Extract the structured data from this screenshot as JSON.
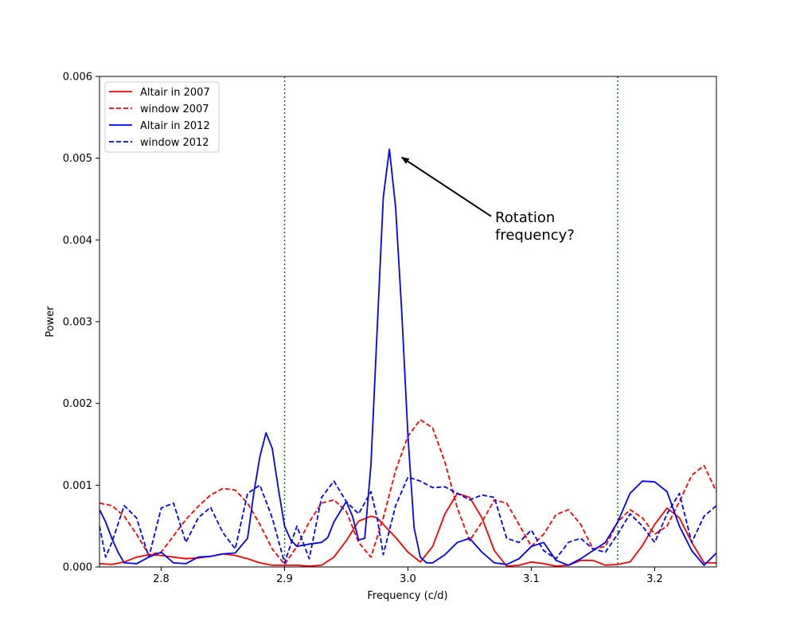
{
  "chart_data": {
    "type": "line",
    "xlabel": "Frequency (c/d)",
    "ylabel": "Power",
    "xlim": [
      2.75,
      3.25
    ],
    "ylim": [
      0,
      0.006
    ],
    "xticks": [
      2.8,
      2.9,
      3.0,
      3.1,
      3.2
    ],
    "xtick_labels": [
      "2.8",
      "2.9",
      "3.0",
      "3.1",
      "3.2"
    ],
    "yticks": [
      0,
      0.001,
      0.002,
      0.003,
      0.004,
      0.005,
      0.006
    ],
    "ytick_labels": [
      "0.000",
      "0.001",
      "0.002",
      "0.003",
      "0.004",
      "0.005",
      "0.006"
    ],
    "grid": false,
    "legend_position": "upper-left",
    "vlines": [
      {
        "x": 2.9,
        "color": "#008000",
        "style": "dotted"
      },
      {
        "x": 3.17,
        "color": "#008000",
        "style": "dotted"
      }
    ],
    "annotation": {
      "lines": [
        "Rotation",
        "frequency?"
      ],
      "xy": [
        2.995,
        0.00501
      ],
      "xytext": [
        3.07,
        0.00425
      ]
    },
    "series": [
      {
        "name": "Altair in 2007",
        "color": "#ff0000",
        "dash": "solid",
        "x": [
          2.75,
          2.76,
          2.77,
          2.78,
          2.79,
          2.8,
          2.81,
          2.82,
          2.83,
          2.84,
          2.85,
          2.86,
          2.87,
          2.88,
          2.89,
          2.9,
          2.91,
          2.92,
          2.93,
          2.94,
          2.95,
          2.96,
          2.97,
          2.975,
          2.98,
          2.99,
          3.0,
          3.01,
          3.02,
          3.03,
          3.04,
          3.05,
          3.06,
          3.07,
          3.08,
          3.09,
          3.1,
          3.11,
          3.12,
          3.13,
          3.14,
          3.15,
          3.16,
          3.17,
          3.18,
          3.19,
          3.2,
          3.21,
          3.22,
          3.23,
          3.24,
          3.25
        ],
        "y": [
          4e-05,
          3e-05,
          6e-05,
          0.00012,
          0.00015,
          0.00014,
          0.00012,
          0.0001,
          0.00011,
          0.00013,
          0.00016,
          0.00014,
          0.0001,
          5e-05,
          2e-05,
          2e-05,
          2e-05,
          1e-05,
          2e-05,
          0.00012,
          0.00032,
          0.00056,
          0.00062,
          0.0006,
          0.00052,
          0.00036,
          0.00018,
          6e-05,
          0.00025,
          0.00065,
          0.0009,
          0.00085,
          0.0006,
          0.0002,
          1e-05,
          2e-05,
          6e-05,
          4e-05,
          1e-05,
          2e-05,
          8e-05,
          8e-05,
          2e-05,
          3e-05,
          6e-05,
          0.00026,
          0.00052,
          0.00072,
          0.0006,
          0.0003,
          5e-05,
          5e-05
        ]
      },
      {
        "name": "window 2007",
        "color": "#ff0000",
        "dash": "dashed",
        "x": [
          2.75,
          2.76,
          2.77,
          2.78,
          2.79,
          2.8,
          2.81,
          2.82,
          2.83,
          2.84,
          2.85,
          2.86,
          2.87,
          2.88,
          2.89,
          2.9,
          2.91,
          2.92,
          2.93,
          2.94,
          2.95,
          2.96,
          2.97,
          2.98,
          2.99,
          3.0,
          3.01,
          3.02,
          3.03,
          3.04,
          3.05,
          3.06,
          3.07,
          3.08,
          3.09,
          3.1,
          3.11,
          3.12,
          3.13,
          3.14,
          3.15,
          3.16,
          3.17,
          3.18,
          3.19,
          3.2,
          3.21,
          3.22,
          3.23,
          3.24,
          3.25
        ],
        "y": [
          0.00078,
          0.00075,
          0.00062,
          0.0004,
          0.00015,
          0.00018,
          0.00038,
          0.00058,
          0.00074,
          0.00088,
          0.00096,
          0.00094,
          0.00078,
          0.00052,
          0.00022,
          3e-05,
          0.00025,
          0.00055,
          0.00078,
          0.00082,
          0.00068,
          0.0003,
          0.00012,
          0.0006,
          0.00118,
          0.0016,
          0.0018,
          0.0017,
          0.00128,
          0.00072,
          0.00032,
          0.00055,
          0.00082,
          0.00078,
          0.00052,
          0.00025,
          0.0004,
          0.00064,
          0.0007,
          0.00052,
          0.00022,
          0.00025,
          0.00055,
          0.0007,
          0.0006,
          0.0004,
          0.0005,
          0.0008,
          0.00112,
          0.00124,
          0.00092
        ]
      },
      {
        "name": "Altair in 2012",
        "color": "#0000ff",
        "dash": "solid",
        "x": [
          2.75,
          2.755,
          2.76,
          2.765,
          2.77,
          2.78,
          2.79,
          2.8,
          2.81,
          2.82,
          2.83,
          2.84,
          2.85,
          2.86,
          2.87,
          2.875,
          2.88,
          2.885,
          2.89,
          2.895,
          2.9,
          2.905,
          2.91,
          2.92,
          2.93,
          2.935,
          2.94,
          2.95,
          2.955,
          2.96,
          2.965,
          2.97,
          2.975,
          2.98,
          2.985,
          2.99,
          2.995,
          3.0,
          3.005,
          3.01,
          3.015,
          3.02,
          3.03,
          3.04,
          3.05,
          3.06,
          3.07,
          3.08,
          3.09,
          3.1,
          3.11,
          3.12,
          3.13,
          3.14,
          3.15,
          3.16,
          3.17,
          3.18,
          3.19,
          3.2,
          3.21,
          3.22,
          3.23,
          3.24,
          3.25
        ],
        "y": [
          0.0007,
          0.00055,
          0.00035,
          0.00018,
          5e-05,
          4e-05,
          0.00012,
          0.00018,
          5e-05,
          4e-05,
          0.00012,
          0.00013,
          0.00016,
          0.00017,
          0.00035,
          0.0009,
          0.00135,
          0.00164,
          0.00145,
          0.00095,
          0.0005,
          0.00033,
          0.00025,
          0.00028,
          0.0003,
          0.00036,
          0.00055,
          0.0008,
          0.00062,
          0.00033,
          0.00035,
          0.00125,
          0.0029,
          0.00452,
          0.00511,
          0.0044,
          0.0031,
          0.0016,
          0.00048,
          0.00012,
          5e-05,
          5e-05,
          0.00015,
          0.0003,
          0.00035,
          0.00018,
          5e-05,
          3e-05,
          0.0001,
          0.00025,
          0.0003,
          8e-05,
          2e-05,
          0.0001,
          0.0002,
          0.0003,
          0.00055,
          0.0009,
          0.00105,
          0.00104,
          0.00092,
          0.0005,
          0.0002,
          2e-05,
          0.00017
        ]
      },
      {
        "name": "window 2012",
        "color": "#0000ff",
        "dash": "dashed",
        "x": [
          2.75,
          2.755,
          2.76,
          2.77,
          2.78,
          2.79,
          2.8,
          2.81,
          2.82,
          2.83,
          2.84,
          2.85,
          2.86,
          2.87,
          2.88,
          2.89,
          2.9,
          2.91,
          2.92,
          2.93,
          2.94,
          2.95,
          2.96,
          2.97,
          2.975,
          2.98,
          2.99,
          3.0,
          3.01,
          3.02,
          3.03,
          3.04,
          3.05,
          3.06,
          3.07,
          3.08,
          3.09,
          3.1,
          3.11,
          3.12,
          3.13,
          3.14,
          3.15,
          3.16,
          3.17,
          3.18,
          3.19,
          3.2,
          3.21,
          3.22,
          3.23,
          3.24,
          3.25
        ],
        "y": [
          0.0005,
          0.00012,
          0.0003,
          0.00075,
          0.0006,
          0.00012,
          0.00072,
          0.00078,
          0.0003,
          0.0006,
          0.00073,
          0.00042,
          0.00022,
          0.0009,
          0.001,
          0.0006,
          5e-05,
          0.0005,
          0.0001,
          0.00085,
          0.00105,
          0.0008,
          0.00065,
          0.00092,
          0.0006,
          0.00015,
          0.00075,
          0.0011,
          0.00105,
          0.00097,
          0.00098,
          0.0009,
          0.00082,
          0.00088,
          0.00085,
          0.00035,
          0.0003,
          0.00045,
          0.0002,
          0.0001,
          0.0003,
          0.00035,
          0.00022,
          0.00018,
          0.0004,
          0.00065,
          0.0005,
          0.0003,
          0.00065,
          0.0009,
          0.0003,
          0.00062,
          0.00075
        ]
      }
    ]
  }
}
